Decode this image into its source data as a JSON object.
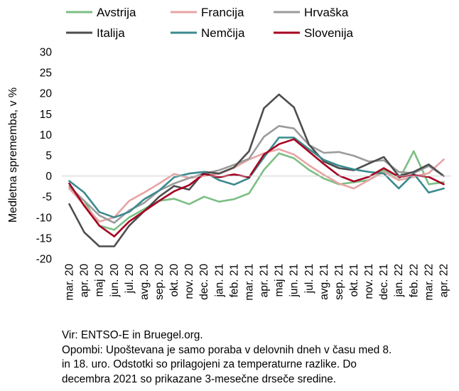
{
  "chart_data": {
    "type": "line",
    "title": "",
    "xlabel": "",
    "ylabel": "Medletna sprememba, v %",
    "ylim": [
      -20,
      30
    ],
    "yticks": [
      "30",
      "25",
      "20",
      "15",
      "10",
      "5",
      "0",
      "-5",
      "-10",
      "-15",
      "-20"
    ],
    "grid": false,
    "legend": "top",
    "categories": [
      "mar. 20",
      "apr. 20",
      "maj 20",
      "jun. 20",
      "jul. 20",
      "avg. 20",
      "sep. 20",
      "okt. 20",
      "nov. 20",
      "dec. 20",
      "jan. 21",
      "feb. 21",
      "mar. 21",
      "apr. 21",
      "maj 21",
      "jun. 21",
      "jul. 21",
      "avg. 21",
      "sep. 21",
      "okt. 21",
      "nov. 21",
      "dec. 21",
      "jan. 22",
      "feb. 22",
      "mar. 22",
      "apr. 22"
    ],
    "series": [
      {
        "name": "Avstrija",
        "color": "#7bbf84",
        "values": [
          -3,
          -6,
          -12,
          -13,
          -10,
          -8,
          -6,
          -5.5,
          -6.8,
          -5,
          -6.2,
          -5.6,
          -4.2,
          1.5,
          5.5,
          4.3,
          1.5,
          -0.6,
          -2,
          -1.5,
          -1,
          1.5,
          -1,
          6,
          -2,
          -1.5
        ]
      },
      {
        "name": "Francija",
        "color": "#e8a3a3",
        "values": [
          -3,
          -7,
          -11,
          -10,
          -6,
          -4,
          -1.8,
          0.5,
          -0.5,
          0,
          0.5,
          2,
          4,
          5.5,
          6.5,
          5.2,
          2.6,
          0.3,
          -1.8,
          -3,
          -1,
          1,
          -1,
          -0.2,
          0.7,
          4
        ]
      },
      {
        "name": "Hrvaška",
        "color": "#9b9b9b",
        "values": [
          -2.5,
          -6,
          -9.5,
          -11.3,
          -8.3,
          -6.5,
          -3.5,
          -1.8,
          -0.5,
          0.6,
          1.4,
          2.7,
          4.2,
          9.5,
          12.1,
          11.5,
          7.5,
          5.6,
          5.8,
          4.9,
          3.5,
          3.8,
          1,
          0.7,
          2.4,
          0
        ]
      },
      {
        "name": "Italija",
        "color": "#4d4d4d",
        "values": [
          -6.8,
          -13.6,
          -17,
          -17,
          -12,
          -8.5,
          -5,
          -2.4,
          -3.3,
          1,
          0.6,
          2.1,
          6,
          16.4,
          19.7,
          16.6,
          7.6,
          3.5,
          1.9,
          1.4,
          3,
          4.6,
          0,
          1,
          2.8,
          0
        ]
      },
      {
        "name": "Nemčija",
        "color": "#3b8a8e",
        "values": [
          -1.2,
          -4,
          -8.7,
          -10,
          -8.7,
          -5.6,
          -3.5,
          -0.3,
          0.6,
          1,
          -1,
          -2.1,
          -0.5,
          4.5,
          9.3,
          9.3,
          6.5,
          3.9,
          2.5,
          1.6,
          1,
          0.6,
          -3,
          0.6,
          -4,
          -3
        ]
      },
      {
        "name": "Slovenija",
        "color": "#a50021",
        "values": [
          -1.8,
          -7.2,
          -12,
          -14.6,
          -11,
          -8.5,
          -6,
          -3.7,
          -2.2,
          0.5,
          -0.3,
          0.4,
          -0.3,
          5.2,
          7.7,
          8.9,
          5.9,
          2.9,
          0.1,
          -1.3,
          -0.2,
          1.9,
          -0.2,
          0.2,
          -0.2,
          -2
        ]
      }
    ]
  },
  "footer": {
    "lines": [
      "Vir: ENTSO-E in Bruegel.org.",
      "Opombi: Upoštevana je samo poraba v delovnih dneh v času med 8.",
      "in 18. uro. Odstotki so prilagojeni za temperaturne razlike. Do",
      "decembra 2021 so prikazane 3-mesečne drseče sredine."
    ]
  }
}
